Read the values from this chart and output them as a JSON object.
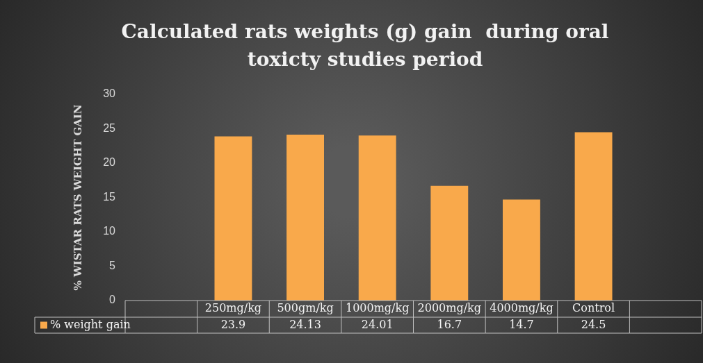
{
  "chart_data": {
    "type": "bar",
    "title": "Calculated rats weights (g) gain  during oral toxicty studies period",
    "ylabel": "% WISTAR RATS WEIGHT GAIN",
    "categories": [
      null,
      "250mg/kg",
      "500gm/kg",
      "1000mg/kg",
      "2000mg/kg",
      "4000mg/kg",
      "Control",
      null
    ],
    "series": [
      {
        "name": "% weight gain",
        "color": "#f9a94b",
        "values": [
          null,
          23.9,
          24.13,
          24.01,
          16.7,
          14.7,
          24.5,
          null
        ]
      }
    ],
    "ylim": [
      0,
      30
    ],
    "yticks": [
      0,
      5,
      10,
      15,
      20,
      25,
      30
    ],
    "grid": false,
    "legend": "bottom",
    "data_labels": true
  }
}
